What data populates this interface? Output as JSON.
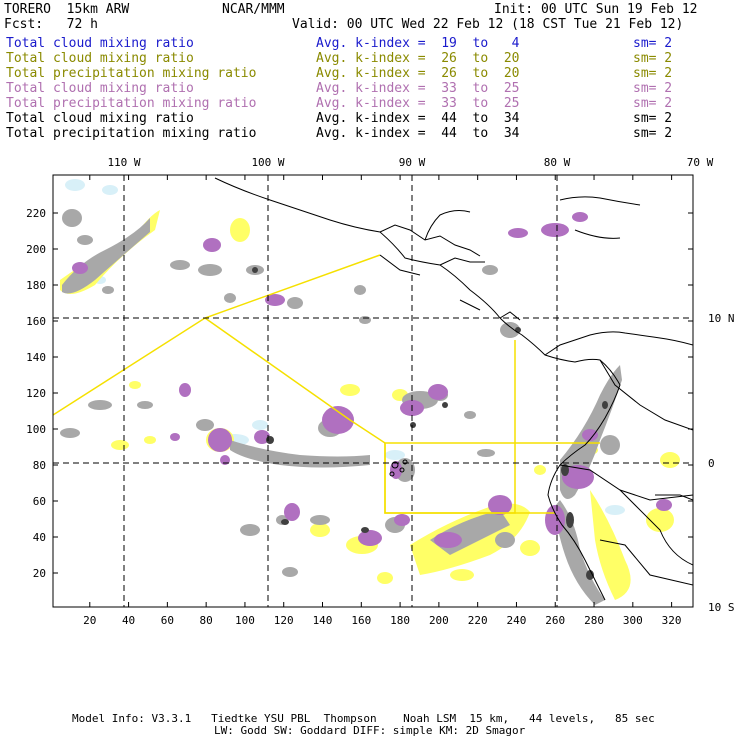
{
  "header": {
    "model": "TORERO  15km ARW",
    "center": "NCAR/MMM",
    "init": "Init: 00 UTC Sun 19 Feb 12",
    "fcst": "Fcst:   72 h",
    "valid": "Valid: 00 UTC Wed 22 Feb 12 (18 CST Tue 21 Feb 12)"
  },
  "legend": [
    {
      "field": "Total cloud mixing ratio",
      "index": "Avg. k-index =  19  to   4",
      "sm": "sm= 2",
      "color": "#1a1acc"
    },
    {
      "field": "Total cloud mixing ratio",
      "index": "Avg. k-index =  26  to  20",
      "sm": "sm= 2",
      "color": "#8a8a00"
    },
    {
      "field": "Total precipitation mixing ratio",
      "index": "Avg. k-index =  26  to  20",
      "sm": "sm= 2",
      "color": "#8a8a00"
    },
    {
      "field": "Total cloud mixing ratio",
      "index": "Avg. k-index =  33  to  25",
      "sm": "sm= 2",
      "color": "#b070b0"
    },
    {
      "field": "Total precipitation mixing ratio",
      "index": "Avg. k-index =  33  to  25",
      "sm": "sm= 2",
      "color": "#b070b0"
    },
    {
      "field": "Total cloud mixing ratio",
      "index": "Avg. k-index =  44  to  34",
      "sm": "sm= 2",
      "color": "#000000"
    },
    {
      "field": "Total precipitation mixing ratio",
      "index": "Avg. k-index =  44  to  34",
      "sm": "sm= 2",
      "color": "#000000"
    }
  ],
  "map": {
    "lon_labels": [
      "110 W",
      "100 W",
      "90 W",
      "80 W",
      "70 W"
    ],
    "lat_labels": [
      "10 N",
      "0",
      "10 S"
    ],
    "y_ticks": [
      "220",
      "200",
      "180",
      "160",
      "140",
      "120",
      "100",
      "80",
      "60",
      "40",
      "20"
    ],
    "x_ticks": [
      "20",
      "40",
      "60",
      "80",
      "100",
      "120",
      "140",
      "160",
      "180",
      "200",
      "220",
      "240",
      "260",
      "280",
      "300",
      "320"
    ],
    "colors": {
      "yellow": "#ffff66",
      "gray": "#a8a8a8",
      "dark_gray": "#404040",
      "purple": "#b070c0",
      "light_blue": "#d8f0f8",
      "domain_line": "#f5e000"
    }
  },
  "footer": {
    "line1": "Model Info: V3.3.1   Tiedtke YSU PBL  Thompson    Noah LSM  15 km,   44 levels,   85 sec",
    "line2": "LW: Godd SW: Goddard DIFF: simple KM: 2D Smagor"
  }
}
